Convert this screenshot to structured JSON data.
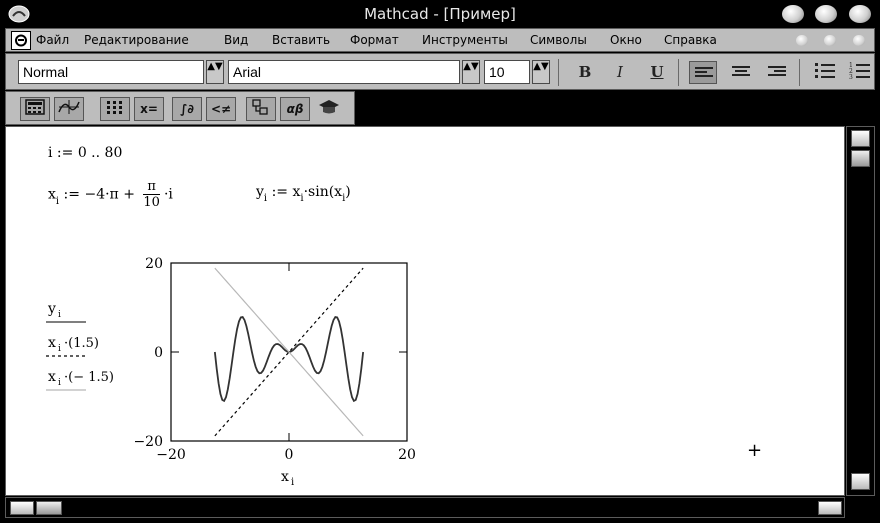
{
  "window": {
    "title": "Mathcad - [Пример]"
  },
  "menu": {
    "items": [
      {
        "label": "Файл"
      },
      {
        "label": "Редактирование"
      },
      {
        "label": "Вид"
      },
      {
        "label": "Вставить"
      },
      {
        "label": "Формат"
      },
      {
        "label": "Инструменты"
      },
      {
        "label": "Символы"
      },
      {
        "label": "Окно"
      },
      {
        "label": "Справка"
      }
    ]
  },
  "format_toolbar": {
    "style_value": "Normal",
    "font_value": "Arial",
    "size_value": "10",
    "bold_label": "B",
    "italic_label": "I",
    "underline_label": "U",
    "spin_glyph": "▲▼"
  },
  "math_toolbar": {
    "eval_label": "x=",
    "greek_label": "αβ",
    "calc_label": "∫∂",
    "bool_label": "<≠"
  },
  "worksheet": {
    "range_def": "i := 0 .. 80",
    "x_lhs": "x",
    "x_sub": "i",
    "x_rhs_prefix": " := −4·π + ",
    "x_frac_num": "π",
    "x_frac_den": "10",
    "x_rhs_suffix": "·i",
    "y_def_y": "y",
    "y_def_sub": "i",
    "y_def_assign": " := x",
    "y_def_sub2": "i",
    "y_def_sin": "·sin",
    "y_def_paren_open": "(x",
    "y_def_sub3": "i",
    "y_def_paren_close": ")",
    "crosshair": "+"
  },
  "chart_data": {
    "type": "line",
    "x_label": "x",
    "x_label_sub": "i",
    "xlim": [
      -20,
      20
    ],
    "ylim": [
      -20,
      20
    ],
    "x_ticks": [
      "−20",
      "0",
      "20"
    ],
    "y_ticks": [
      "20",
      "0",
      "−20"
    ],
    "x_range": [
      -12.566,
      12.566
    ],
    "points": 81,
    "series": [
      {
        "name": "y",
        "name_sub": "i",
        "name_suffix": "",
        "expr": "x*sin(x)",
        "style": "solid",
        "color": "#333333"
      },
      {
        "name": "x",
        "name_sub": "i",
        "name_suffix": "·(1.5)",
        "expr": "1.5*x",
        "style": "dashed",
        "color": "#000000"
      },
      {
        "name": "x",
        "name_sub": "i",
        "name_suffix": "·(− 1.5)",
        "expr": "-1.5*x",
        "style": "solid",
        "color": "#b8b8b8"
      }
    ]
  }
}
